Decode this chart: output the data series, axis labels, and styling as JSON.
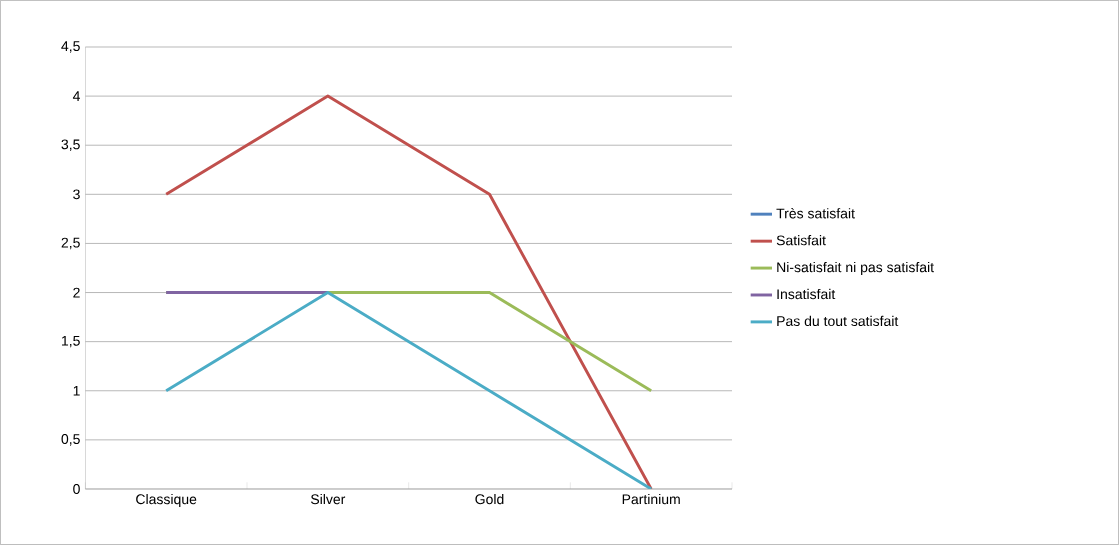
{
  "chart_data": {
    "type": "line",
    "categories": [
      "Classique",
      "Silver",
      "Gold",
      "Partinium"
    ],
    "series": [
      {
        "name": "Très satisfait",
        "color": "#4f81bd",
        "values": [
          null,
          null,
          null,
          null
        ]
      },
      {
        "name": "Satisfait",
        "color": "#c0504d",
        "values": [
          3,
          4,
          3,
          0
        ]
      },
      {
        "name": "Ni-satisfait ni pas satisfait",
        "color": "#9bbb59",
        "values": [
          2,
          2,
          2,
          1
        ]
      },
      {
        "name": "Insatisfait",
        "color": "#8064a2",
        "values": [
          2,
          2,
          null,
          null
        ]
      },
      {
        "name": "Pas du tout satisfait",
        "color": "#4bacc6",
        "values": [
          1,
          2,
          1,
          0
        ]
      }
    ],
    "ylim": [
      0,
      4.5
    ],
    "yticks": [
      0,
      {
        "value": 0.5,
        "label": "0,5"
      },
      1,
      {
        "value": 1.5,
        "label": "1,5"
      },
      2,
      {
        "value": 2.5,
        "label": "2,5"
      },
      3,
      {
        "value": 3.5,
        "label": "3,5"
      },
      4,
      {
        "value": 4.5,
        "label": "4,5"
      }
    ],
    "grid": "y",
    "legend": "right",
    "marker": "none",
    "line_style": "solid"
  }
}
